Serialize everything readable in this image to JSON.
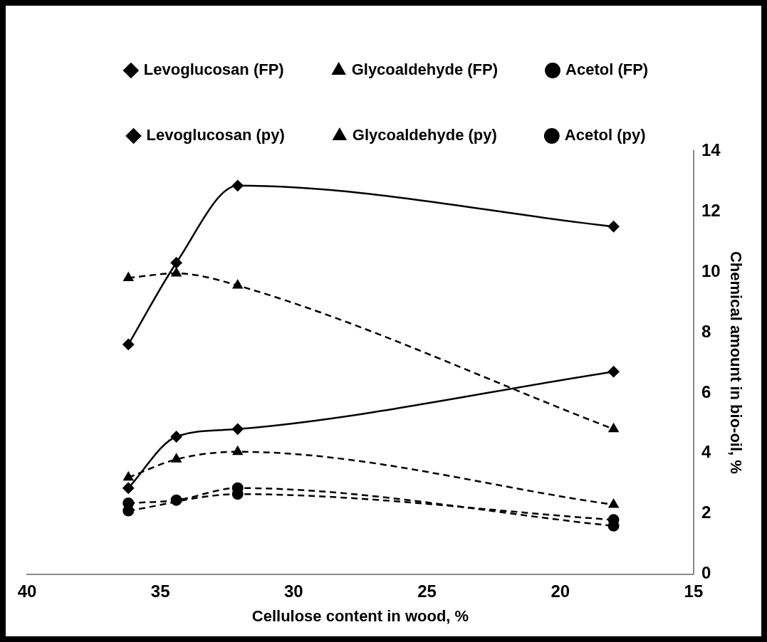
{
  "chart_data": {
    "type": "line",
    "xlabel": "Cellulose content in wood, %",
    "ylabel": "Chemical amount in bio-oil, %",
    "x": [
      36.2,
      34.4,
      32.1,
      18
    ],
    "xlim": [
      40,
      15
    ],
    "xticks": [
      40,
      35,
      30,
      25,
      20,
      15
    ],
    "ylim": [
      0,
      14
    ],
    "yticks": [
      0,
      2,
      4,
      6,
      8,
      10,
      12,
      14
    ],
    "grid": false,
    "legend": "top",
    "series": [
      {
        "name": "Levoglucosan (FP)",
        "color": "#000000",
        "marker": "diamond",
        "line_style": "solid",
        "values": [
          2.85,
          4.55,
          4.8,
          6.7
        ]
      },
      {
        "name": "Glycoaldehyde (FP)",
        "color": "#000000",
        "marker": "triangle",
        "line_style": "dashed",
        "values": [
          9.8,
          9.95,
          9.55,
          4.8
        ]
      },
      {
        "name": "Acetol (FP)",
        "color": "#000000",
        "marker": "circle",
        "line_style": "dashed",
        "values": [
          2.35,
          2.45,
          2.85,
          1.6
        ]
      },
      {
        "name": "Levoglucosan (py)",
        "color": "#000000",
        "marker": "diamond",
        "line_style": "solid",
        "values": [
          7.6,
          10.3,
          12.85,
          11.5
        ]
      },
      {
        "name": "Glycoaldehyde (py)",
        "color": "#000000",
        "marker": "triangle",
        "line_style": "dashed",
        "values": [
          3.2,
          3.8,
          4.05,
          2.3
        ]
      },
      {
        "name": "Acetol (py)",
        "color": "#000000",
        "marker": "circle",
        "line_style": "dashed",
        "values": [
          2.1,
          null,
          2.65,
          1.8
        ]
      }
    ]
  }
}
